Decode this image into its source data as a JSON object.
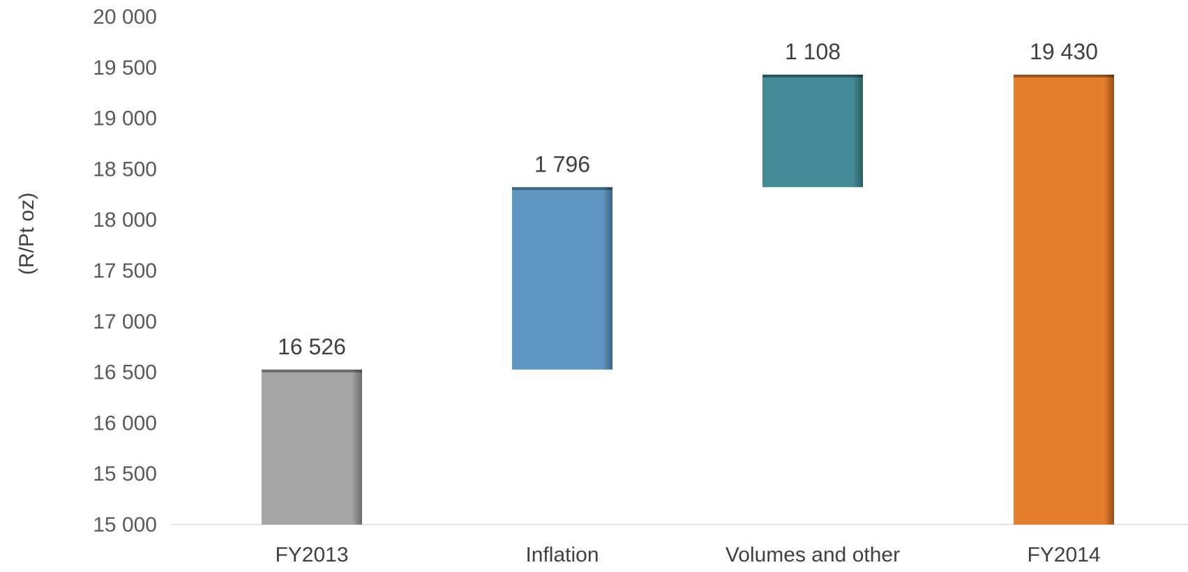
{
  "chart_data": {
    "type": "bar",
    "subtype": "waterfall",
    "title": "",
    "xlabel": "",
    "ylabel": "(R/Pt oz)",
    "ylim": [
      15000,
      20000
    ],
    "yticks": [
      15000,
      15500,
      16000,
      16500,
      17000,
      17500,
      18000,
      18500,
      19000,
      19500,
      20000
    ],
    "ytick_labels": [
      "15 000",
      "15 500",
      "16 000",
      "16 500",
      "17 000",
      "17 500",
      "18 000",
      "18 500",
      "19 000",
      "19 500",
      "20 000"
    ],
    "grid": false,
    "legend": "none",
    "categories": [
      "FY2013",
      "Inflation",
      "Volumes and other",
      "FY2014"
    ],
    "bars": [
      {
        "category": "FY2013",
        "start": 15000,
        "end": 16526,
        "label": "16 526",
        "color": "#a5a5a5"
      },
      {
        "category": "Inflation",
        "start": 16526,
        "end": 18322,
        "label": "1 796",
        "color": "#5f97c2"
      },
      {
        "category": "Volumes and other",
        "start": 18322,
        "end": 19430,
        "label": "1 108",
        "color": "#448b97"
      },
      {
        "category": "FY2014",
        "start": 15000,
        "end": 19430,
        "label": "19 430",
        "color": "#e67e2e"
      }
    ]
  }
}
